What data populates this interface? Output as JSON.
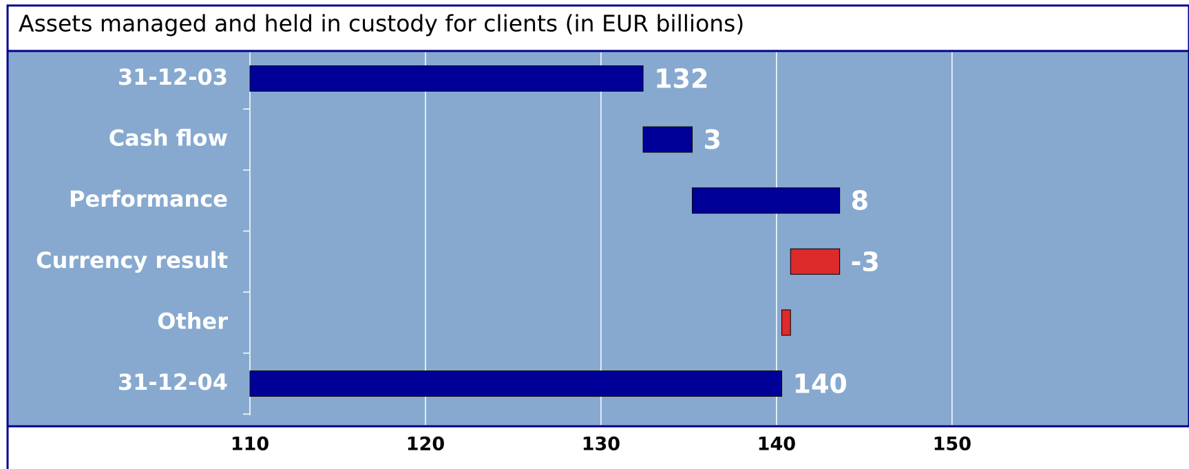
{
  "chart_data": {
    "type": "waterfall",
    "title": "Assets managed and held in custody for clients (in EUR billions)",
    "categories": [
      "31-12-03",
      "Cash flow",
      "Performance",
      "Currency result",
      "Other",
      "31-12-04"
    ],
    "values": [
      132.4,
      2.8,
      8.4,
      -2.8,
      -0.5,
      140.3
    ],
    "value_labels": [
      "132",
      "3",
      "8",
      "-3",
      null,
      "140"
    ],
    "measure": [
      "absolute",
      "relative",
      "relative",
      "relative",
      "relative",
      "absolute"
    ],
    "colors": [
      "#000099",
      "#000099",
      "#000099",
      "#dd2a2a",
      "#dd2a2a",
      "#000099"
    ],
    "xlim": [
      110,
      163.5
    ],
    "xticks": [
      110,
      120,
      130,
      140,
      150
    ],
    "grid": true
  }
}
